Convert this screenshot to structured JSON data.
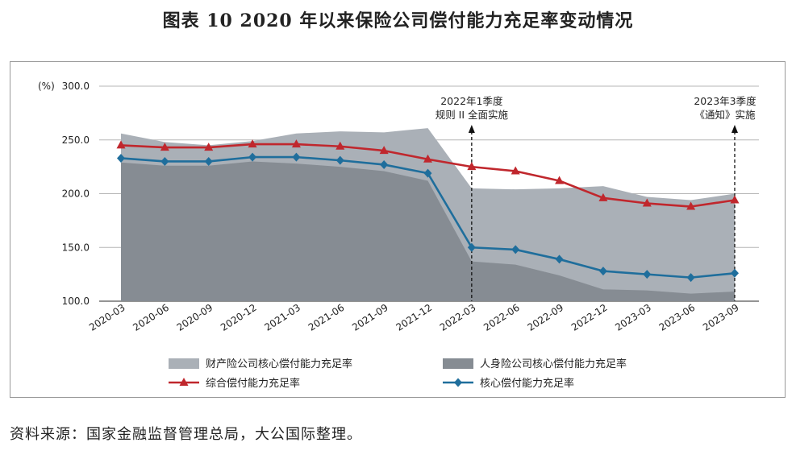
{
  "title": "图表 10  2020 年以来保险公司偿付能力充足率变动情况",
  "source": "资料来源：国家金融监督管理总局，大公国际整理。",
  "colors": {
    "property_area": "#aab0b7",
    "life_area": "#868c93",
    "comprehensive": "#c0272d",
    "core": "#1f6e9c"
  },
  "chart_data": {
    "type": "area",
    "ylabel": "(%)",
    "ylim": [
      100,
      300
    ],
    "yticks": [
      "100.0",
      "150.0",
      "200.0",
      "250.0",
      "300.0"
    ],
    "grid": true,
    "legend_position": "bottom",
    "categories": [
      "2020-03",
      "2020-06",
      "2020-09",
      "2020-12",
      "2021-03",
      "2021-06",
      "2021-09",
      "2021-12",
      "2022-03",
      "2022-06",
      "2022-09",
      "2022-12",
      "2023-03",
      "2023-06",
      "2023-09"
    ],
    "series": [
      {
        "name": "财产险公司核心偿付能力充足率",
        "kind": "area",
        "color": "#aab0b7",
        "values": [
          256,
          248,
          245,
          249,
          256,
          258,
          257,
          261,
          205,
          204,
          205,
          207,
          197,
          194,
          200
        ]
      },
      {
        "name": "人身险公司核心偿付能力充足率",
        "kind": "area",
        "color": "#868c93",
        "values": [
          229,
          226,
          226,
          230,
          228,
          225,
          221,
          212,
          137,
          134,
          124,
          111,
          110,
          107,
          109
        ]
      },
      {
        "name": "综合偿付能力充足率",
        "kind": "line",
        "marker": "triangle",
        "color": "#c0272d",
        "values": [
          245,
          243,
          243,
          246,
          246,
          244,
          240,
          232,
          225,
          221,
          212,
          196,
          191,
          188,
          194
        ]
      },
      {
        "name": "核心偿付能力充足率",
        "kind": "line",
        "marker": "diamond",
        "color": "#1f6e9c",
        "values": [
          233,
          230,
          230,
          234,
          234,
          231,
          227,
          219,
          150,
          148,
          139,
          128,
          125,
          122,
          126
        ]
      }
    ],
    "annotations": [
      {
        "category": "2022-03",
        "lines": [
          "2022年1季度",
          "规则 II 全面实施"
        ]
      },
      {
        "category": "2023-09",
        "lines": [
          "2023年3季度",
          "《通知》实施"
        ]
      }
    ]
  }
}
